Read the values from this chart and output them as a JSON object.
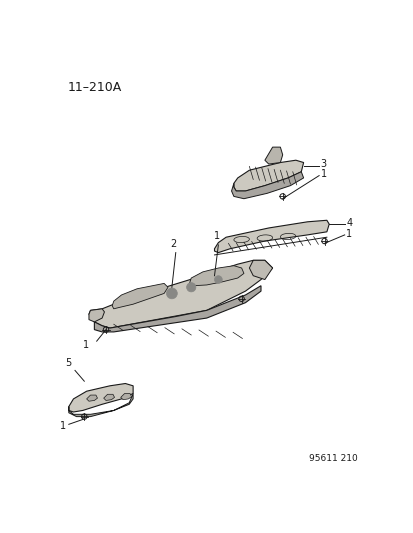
{
  "title": "11–210A",
  "footer": "95611 210",
  "bg_color": "#ffffff",
  "title_fontsize": 9,
  "footer_fontsize": 6.5,
  "line_color": "#1a1a1a",
  "fill_color": "#d8d5ce",
  "label_fontsize": 7
}
